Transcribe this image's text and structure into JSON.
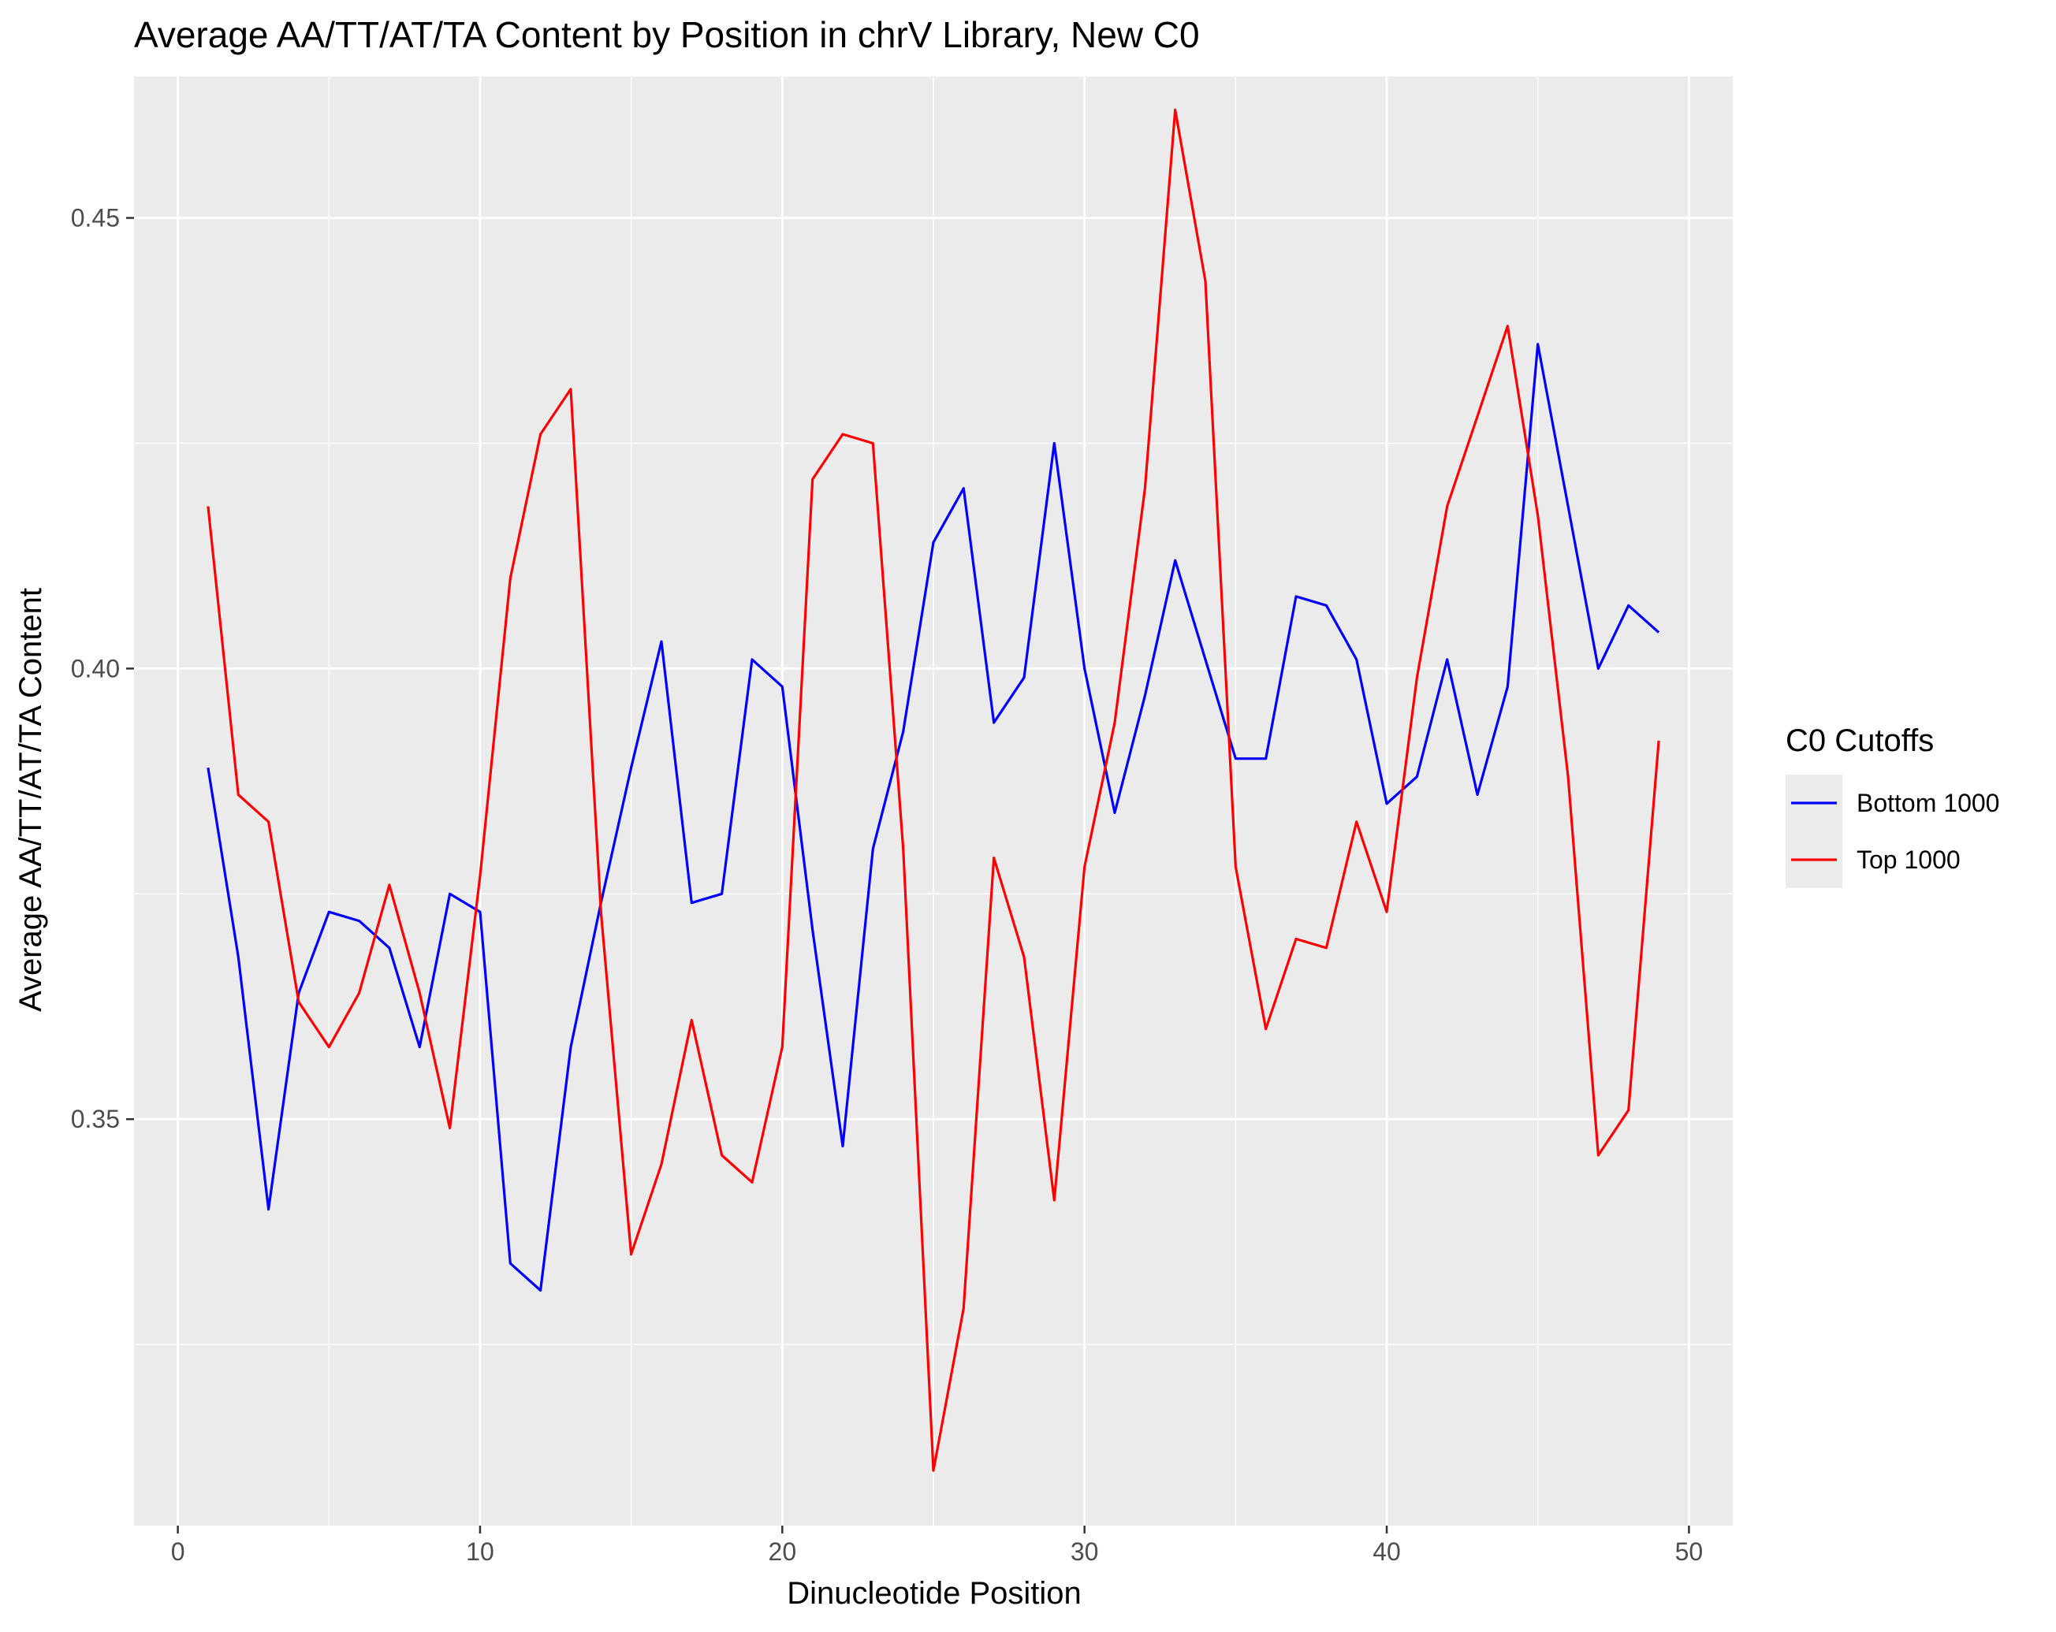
{
  "chart_data": {
    "type": "line",
    "title": "Average AA/TT/AT/TA Content by Position in chrV Library, New C0",
    "xlabel": "Dinucleotide Position",
    "ylabel": "Average AA/TT/AT/TA Content",
    "xlim": [
      -1.45,
      51.45
    ],
    "ylim": [
      0.3049,
      0.4657
    ],
    "x_ticks": [
      0,
      10,
      20,
      30,
      40,
      50
    ],
    "x_tick_labels": [
      "0",
      "10",
      "20",
      "30",
      "40",
      "50"
    ],
    "y_ticks": [
      0.35,
      0.4,
      0.45
    ],
    "y_tick_labels": [
      "0.35",
      "0.40",
      "0.45"
    ],
    "y_minor_ticks": [
      0.325,
      0.375,
      0.425
    ],
    "x_minor_ticks": [
      5,
      15,
      25,
      35,
      45
    ],
    "grid": true,
    "legend": {
      "title": "C0 Cutoffs",
      "position": "right"
    },
    "x": [
      1,
      2,
      3,
      4,
      5,
      6,
      7,
      8,
      9,
      10,
      11,
      12,
      13,
      14,
      15,
      16,
      17,
      18,
      19,
      20,
      21,
      22,
      23,
      24,
      25,
      26,
      27,
      28,
      29,
      30,
      31,
      32,
      33,
      34,
      35,
      36,
      37,
      38,
      39,
      40,
      41,
      42,
      43,
      44,
      45,
      46,
      47,
      48,
      49
    ],
    "series": [
      {
        "name": "Bottom 1000",
        "color": "#0000ff",
        "values": [
          0.389,
          0.368,
          0.34,
          0.364,
          0.373,
          0.372,
          0.369,
          0.358,
          0.375,
          0.373,
          0.334,
          0.331,
          0.358,
          0.374,
          0.389,
          0.403,
          0.374,
          0.375,
          0.401,
          0.398,
          0.371,
          0.347,
          0.38,
          0.393,
          0.414,
          0.42,
          0.394,
          0.399,
          0.425,
          0.4,
          0.384,
          0.397,
          0.412,
          0.401,
          0.39,
          0.39,
          0.408,
          0.407,
          0.401,
          0.385,
          0.388,
          0.401,
          0.386,
          0.398,
          0.436,
          0.418,
          0.4,
          0.407,
          0.404
        ]
      },
      {
        "name": "Top 1000",
        "color": "#ff0000",
        "values": [
          0.418,
          0.386,
          0.383,
          0.363,
          0.358,
          0.364,
          0.376,
          0.364,
          0.349,
          0.377,
          0.41,
          0.426,
          0.431,
          0.373,
          0.335,
          0.345,
          0.361,
          0.346,
          0.343,
          0.358,
          0.421,
          0.426,
          0.425,
          0.38,
          0.311,
          0.329,
          0.379,
          0.368,
          0.341,
          0.378,
          0.394,
          0.42,
          0.462,
          0.443,
          0.378,
          0.36,
          0.37,
          0.369,
          0.383,
          0.373,
          0.399,
          0.418,
          0.428,
          0.438,
          0.417,
          0.388,
          0.346,
          0.351,
          0.392
        ]
      }
    ]
  },
  "colors": {
    "panel_background": "#ebebeb",
    "grid_major": "#ffffff",
    "axis_text": "#4d4d4d",
    "title_text": "#000000"
  }
}
